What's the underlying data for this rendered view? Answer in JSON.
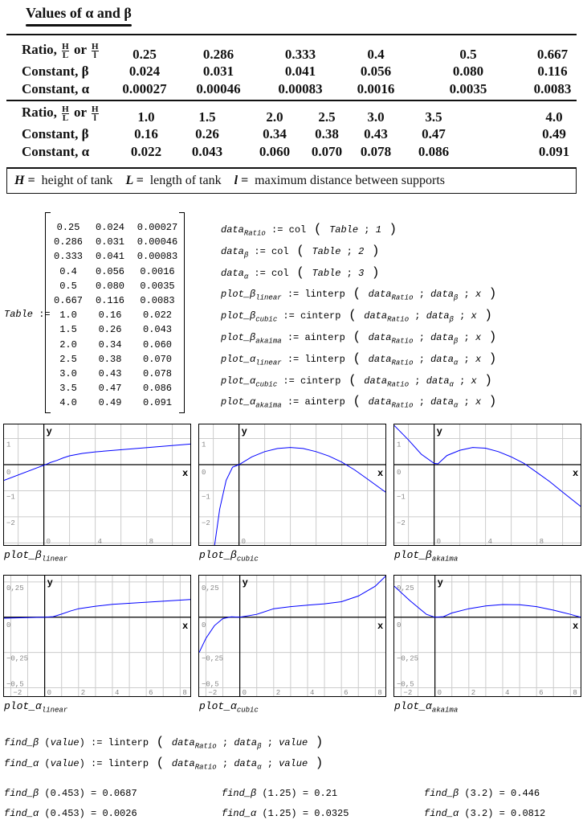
{
  "book_table": {
    "title": "Values of α and β",
    "table1": {
      "row_labels": [
        "Ratio,",
        "Constant, β",
        "Constant, α"
      ],
      "frac_H": "H",
      "frac_L": "L",
      "frac_l": "l",
      "or": "or",
      "ratio": [
        "0.25",
        "0.286",
        "0.333",
        "0.4",
        "0.5",
        "0.667"
      ],
      "beta": [
        "0.024",
        "0.031",
        "0.041",
        "0.056",
        "0.080",
        "0.116"
      ],
      "alpha": [
        "0.00027",
        "0.00046",
        "0.00083",
        "0.0016",
        "0.0035",
        "0.0083"
      ]
    },
    "table2": {
      "ratio": [
        "1.0",
        "1.5",
        "2.0",
        "2.5",
        "3.0",
        "3.5",
        "4.0"
      ],
      "beta": [
        "0.16",
        "0.26",
        "0.34",
        "0.38",
        "0.43",
        "0.47",
        "0.49"
      ],
      "alpha": [
        "0.022",
        "0.043",
        "0.060",
        "0.070",
        "0.078",
        "0.086",
        "0.091"
      ]
    },
    "footer": {
      "h_sym": "H =",
      "h_text": "height of tank",
      "L_sym": "L =",
      "L_text": "length of tank",
      "l_sym": "l =",
      "l_text": "maximum distance between supports"
    }
  },
  "matrix": {
    "name": "Table",
    "assign": ":=",
    "rows": [
      [
        "0.25",
        "0.024",
        "0.00027"
      ],
      [
        "0.286",
        "0.031",
        "0.00046"
      ],
      [
        "0.333",
        "0.041",
        "0.00083"
      ],
      [
        "0.4",
        "0.056",
        "0.0016"
      ],
      [
        "0.5",
        "0.080",
        "0.0035"
      ],
      [
        "0.667",
        "0.116",
        "0.0083"
      ],
      [
        "1.0",
        "0.16",
        "0.022"
      ],
      [
        "1.5",
        "0.26",
        "0.043"
      ],
      [
        "2.0",
        "0.34",
        "0.060"
      ],
      [
        "2.5",
        "0.38",
        "0.070"
      ],
      [
        "3.0",
        "0.43",
        "0.078"
      ],
      [
        "3.5",
        "0.47",
        "0.086"
      ],
      [
        "4.0",
        "0.49",
        "0.091"
      ]
    ]
  },
  "definitions": [
    {
      "lhs": "data",
      "lhs_sub": "Ratio",
      "fn": "col",
      "args": [
        [
          "Table",
          ""
        ],
        [
          "1",
          ""
        ]
      ]
    },
    {
      "lhs": "data",
      "lhs_sub": "β",
      "fn": "col",
      "args": [
        [
          "Table",
          ""
        ],
        [
          "2",
          ""
        ]
      ]
    },
    {
      "lhs": "data",
      "lhs_sub": "α",
      "fn": "col",
      "args": [
        [
          "Table",
          ""
        ],
        [
          "3",
          ""
        ]
      ]
    },
    {
      "lhs": "plot_β",
      "lhs_sub": "linear",
      "fn": "linterp",
      "args": [
        [
          "data",
          "Ratio"
        ],
        [
          "data",
          "β"
        ],
        [
          "x",
          ""
        ]
      ]
    },
    {
      "lhs": "plot_β",
      "lhs_sub": "cubic",
      "fn": "cinterp",
      "args": [
        [
          "data",
          "Ratio"
        ],
        [
          "data",
          "β"
        ],
        [
          "x",
          ""
        ]
      ]
    },
    {
      "lhs": "plot_β",
      "lhs_sub": "akaima",
      "fn": "ainterp",
      "args": [
        [
          "data",
          "Ratio"
        ],
        [
          "data",
          "β"
        ],
        [
          "x",
          ""
        ]
      ]
    },
    {
      "lhs": "plot_α",
      "lhs_sub": "linear",
      "fn": "linterp",
      "args": [
        [
          "data",
          "Ratio"
        ],
        [
          "data",
          "α"
        ],
        [
          "x",
          ""
        ]
      ]
    },
    {
      "lhs": "plot_α",
      "lhs_sub": "cubic",
      "fn": "cinterp",
      "args": [
        [
          "data",
          "Ratio"
        ],
        [
          "data",
          "α"
        ],
        [
          "x",
          ""
        ]
      ]
    },
    {
      "lhs": "plot_α",
      "lhs_sub": "akaima",
      "fn": "ainterp",
      "args": [
        [
          "data",
          "Ratio"
        ],
        [
          "data",
          "α"
        ],
        [
          "x",
          ""
        ]
      ]
    }
  ],
  "chart_data": [
    {
      "type": "line",
      "title": "plot_β",
      "title_sub": "linear",
      "xlabel": "x",
      "ylabel": "y",
      "xlim": [
        -3.1,
        11.4
      ],
      "ylim": [
        -3.08,
        1.54
      ],
      "xgrid": 2,
      "ygrid": 1,
      "xticks": [
        "0",
        "4",
        "8"
      ],
      "xtick_vals": [
        0,
        4,
        8
      ],
      "yticks": [
        "1",
        "0",
        "−1",
        "−2"
      ],
      "ytick_vals": [
        1,
        0,
        -1,
        -2
      ],
      "x": [
        -3.1,
        0.25,
        0.5,
        1,
        1.5,
        2,
        3,
        4,
        11.4
      ],
      "y": [
        -0.6,
        0.024,
        0.08,
        0.16,
        0.26,
        0.34,
        0.43,
        0.49,
        0.79
      ]
    },
    {
      "type": "line",
      "title": "plot_β",
      "title_sub": "cubic",
      "xlabel": "x",
      "ylabel": "y",
      "xlim": [
        -3.1,
        11.4
      ],
      "ylim": [
        -3.08,
        1.54
      ],
      "xgrid": 2,
      "ygrid": 1,
      "xticks": [
        "0"
      ],
      "xtick_vals": [
        0
      ],
      "yticks": [
        "1",
        "0",
        "−1",
        "−2"
      ],
      "ytick_vals": [
        1,
        0,
        -1,
        -2
      ],
      "x": [
        -1.9,
        -1.5,
        -1,
        -0.5,
        0,
        1,
        2,
        3,
        4,
        5,
        6,
        7,
        8,
        9,
        10,
        11.4
      ],
      "y": [
        -3.1,
        -1.7,
        -0.6,
        -0.1,
        0,
        0.3,
        0.5,
        0.62,
        0.66,
        0.62,
        0.5,
        0.33,
        0.1,
        -0.2,
        -0.55,
        -1.05
      ]
    },
    {
      "type": "line",
      "title": "plot_β",
      "title_sub": "akaima",
      "xlabel": "x",
      "ylabel": "y",
      "xlim": [
        -3.1,
        11.4
      ],
      "ylim": [
        -3.08,
        1.54
      ],
      "xgrid": 2,
      "ygrid": 1,
      "xticks": [
        "0",
        "4",
        "8"
      ],
      "xtick_vals": [
        0,
        4,
        8
      ],
      "yticks": [
        "1",
        "0",
        "−1",
        "−2"
      ],
      "ytick_vals": [
        1,
        0,
        -1,
        -2
      ],
      "x": [
        -3.1,
        -2,
        -1,
        0,
        0.3,
        1,
        2,
        3,
        4,
        5,
        6,
        7,
        8,
        9,
        10,
        11.4
      ],
      "y": [
        1.5,
        0.95,
        0.4,
        0.05,
        0.03,
        0.35,
        0.55,
        0.66,
        0.63,
        0.5,
        0.3,
        0.05,
        -0.3,
        -0.65,
        -1.05,
        -1.6
      ]
    },
    {
      "type": "line",
      "title": "plot_α",
      "title_sub": "linear",
      "xlabel": "x",
      "ylabel": "y",
      "xlim": [
        -2.4,
        8.6
      ],
      "ylim": [
        -0.56,
        0.295
      ],
      "xgrid": 1,
      "ygrid": 0.25,
      "xticks": [
        "0",
        "2",
        "4",
        "6",
        "8",
        "−2"
      ],
      "xtick_vals": [
        0,
        2,
        4,
        6,
        8,
        -2
      ],
      "yticks": [
        "0,25",
        "0",
        "−0,25",
        "−0,5"
      ],
      "ytick_vals": [
        0.25,
        0,
        -0.25,
        -0.5
      ],
      "x": [
        -2.4,
        0,
        0.5,
        1,
        1.5,
        2,
        3,
        4,
        8.6
      ],
      "y": [
        -0.007,
        0,
        0.0035,
        0.022,
        0.043,
        0.06,
        0.078,
        0.091,
        0.125
      ]
    },
    {
      "type": "line",
      "title": "plot_α",
      "title_sub": "cubic",
      "xlabel": "x",
      "ylabel": "y",
      "xlim": [
        -2.4,
        8.6
      ],
      "ylim": [
        -0.56,
        0.295
      ],
      "xgrid": 1,
      "ygrid": 0.25,
      "xticks": [
        "0",
        "2",
        "4",
        "6",
        "8",
        "−2"
      ],
      "xtick_vals": [
        0,
        2,
        4,
        6,
        8,
        -2
      ],
      "yticks": [
        "0,25",
        "0",
        "−0,25",
        "−0,5"
      ],
      "ytick_vals": [
        0.25,
        0,
        -0.25,
        -0.5
      ],
      "x": [
        -2.4,
        -2,
        -1.5,
        -1,
        -0.5,
        0,
        1,
        2,
        3,
        4,
        5,
        6,
        7,
        8,
        8.6
      ],
      "y": [
        -0.25,
        -0.15,
        -0.06,
        -0.01,
        0.003,
        0,
        0.02,
        0.06,
        0.075,
        0.085,
        0.095,
        0.11,
        0.15,
        0.22,
        0.29
      ]
    },
    {
      "type": "line",
      "title": "plot_α",
      "title_sub": "akaima",
      "xlabel": "x",
      "ylabel": "y",
      "xlim": [
        -2.4,
        8.6
      ],
      "ylim": [
        -0.56,
        0.295
      ],
      "xgrid": 1,
      "ygrid": 0.25,
      "xticks": [
        "0",
        "2",
        "4",
        "6",
        "8",
        "−2"
      ],
      "xtick_vals": [
        0,
        2,
        4,
        6,
        8,
        -2
      ],
      "yticks": [
        "0,25",
        "0",
        "−0,25",
        "−0,5"
      ],
      "ytick_vals": [
        0.25,
        0,
        -0.25,
        -0.5
      ],
      "x": [
        -2.4,
        -1.5,
        -1,
        -0.5,
        0,
        0.5,
        1,
        2,
        3,
        4,
        5,
        6,
        7,
        8,
        8.6
      ],
      "y": [
        0.22,
        0.12,
        0.07,
        0.02,
        0,
        0.004,
        0.03,
        0.06,
        0.08,
        0.09,
        0.088,
        0.075,
        0.05,
        0.02,
        0
      ]
    }
  ],
  "find_defs": [
    {
      "name": "find_β",
      "param": "value",
      "fn": "linterp",
      "a1": "data",
      "a1_sub": "Ratio",
      "a2": "data",
      "a2_sub": "β",
      "a3": "value"
    },
    {
      "name": "find_α",
      "param": "value",
      "fn": "linterp",
      "a1": "data",
      "a1_sub": "Ratio",
      "a2": "data",
      "a2_sub": "α",
      "a3": "value"
    }
  ],
  "results": [
    [
      {
        "fn": "find_β",
        "arg": "0.453",
        "val": "0.0687"
      },
      {
        "fn": "find_β",
        "arg": "1.25",
        "val": "0.21"
      },
      {
        "fn": "find_β",
        "arg": "3.2",
        "val": "0.446"
      }
    ],
    [
      {
        "fn": "find_α",
        "arg": "0.453",
        "val": "0.0026"
      },
      {
        "fn": "find_α",
        "arg": "1.25",
        "val": "0.0325"
      },
      {
        "fn": "find_α",
        "arg": "3.2",
        "val": "0.0812"
      }
    ]
  ],
  "colors": {
    "curve": "#0000ff",
    "grid": "#cccccc",
    "tick": "#888888"
  }
}
